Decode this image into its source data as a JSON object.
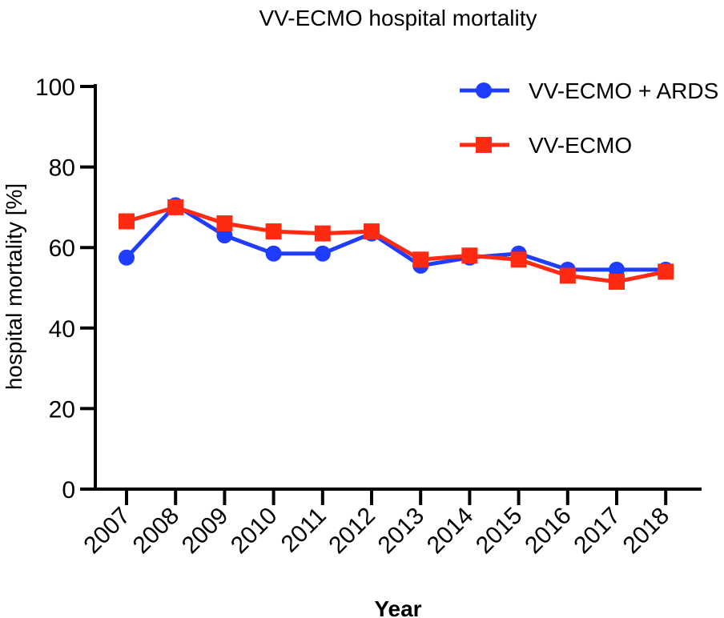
{
  "chart_data": {
    "type": "line",
    "title": "VV-ECMO hospital mortality",
    "xlabel": "Year",
    "ylabel": "hospital mortality [%]",
    "ylim": [
      0,
      100
    ],
    "yticks": [
      "0",
      "20",
      "40",
      "60",
      "80",
      "100"
    ],
    "categories": [
      "2007",
      "2008",
      "2009",
      "2010",
      "2011",
      "2012",
      "2013",
      "2014",
      "2015",
      "2016",
      "2017",
      "2018"
    ],
    "legend_position": "top-right",
    "grid": false,
    "series": [
      {
        "name": "VV-ECMO + ARDS",
        "color": "#1f3cff",
        "marker": "circle",
        "values": [
          57.5,
          70.5,
          63,
          58.5,
          58.5,
          63.5,
          55.5,
          57.5,
          58.5,
          54.5,
          54.5,
          54.5
        ]
      },
      {
        "name": "VV-ECMO",
        "color": "#ff2a12",
        "marker": "square",
        "values": [
          66.5,
          70,
          66,
          64,
          63.5,
          64,
          57,
          58,
          57,
          53,
          51.5,
          54
        ]
      }
    ]
  }
}
